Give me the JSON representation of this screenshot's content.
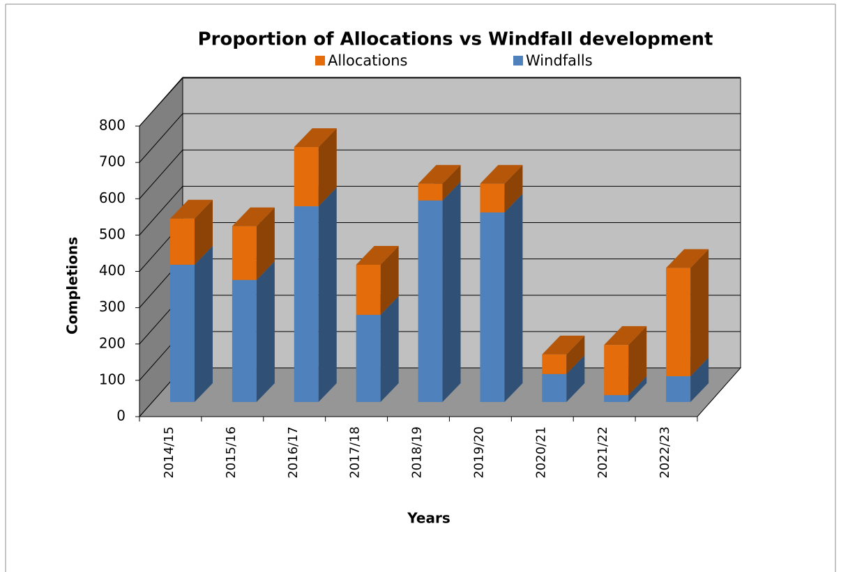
{
  "chart_data": {
    "type": "bar3d_stacked",
    "title": "Proportion of Allocations vs Windfall development",
    "x_label": "Years",
    "y_label": "Completions",
    "categories": [
      "2014/15",
      "2015/16",
      "2016/17",
      "2017/18",
      "2018/19",
      "2019/20",
      "2020/21",
      "2021/22",
      "2022/23"
    ],
    "series": [
      {
        "name": "Windfalls",
        "color": "#4f81bd",
        "values": [
          378,
          336,
          539,
          240,
          555,
          522,
          77,
          19,
          71
        ]
      },
      {
        "name": "Allocations",
        "color": "#e46c0a",
        "values": [
          127,
          148,
          163,
          138,
          46,
          79,
          54,
          138,
          298
        ]
      }
    ],
    "ylim": [
      0,
      800
    ],
    "yticks": [
      0,
      100,
      200,
      300,
      400,
      500,
      600,
      700,
      800
    ],
    "grid": true
  }
}
